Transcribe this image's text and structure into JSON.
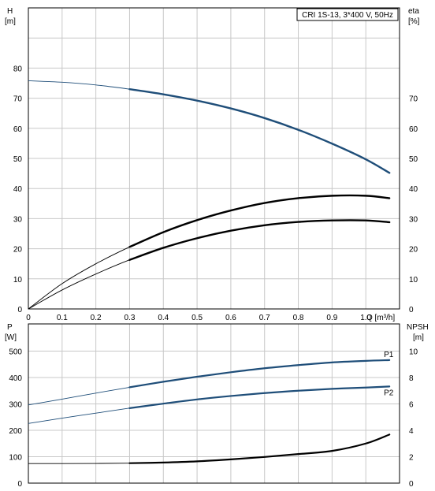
{
  "chart_data": [
    {
      "type": "line",
      "title": "CRI 1S-13, 3*400 V, 50Hz",
      "xlabel": "Q [m³/h]",
      "ylabel_left": [
        "H",
        "[m]"
      ],
      "ylabel_right": [
        "eta",
        "[%]"
      ],
      "xlim": [
        0,
        1.1
      ],
      "ylim_left": [
        0,
        90
      ],
      "ylim_right": [
        0,
        90
      ],
      "x_ticks": [
        "0",
        "0.1",
        "0.2",
        "0.3",
        "0.4",
        "0.5",
        "0.6",
        "0.7",
        "0.8",
        "0.9",
        "1.0"
      ],
      "y_ticks_left": [
        "0",
        "10",
        "20",
        "30",
        "40",
        "50",
        "60",
        "70",
        "80"
      ],
      "y_ticks_right": [
        "0",
        "10",
        "20",
        "30",
        "40",
        "50",
        "60",
        "70"
      ],
      "grid": true,
      "operating_range": [
        0.3,
        1.0
      ],
      "series": [
        {
          "color": "#1f4e79",
          "axis": "left",
          "x": [
            0,
            0.1,
            0.2,
            0.3,
            0.4,
            0.5,
            0.6,
            0.7,
            0.8,
            0.9,
            1.0,
            1.07
          ],
          "values": [
            75.8,
            75.3,
            74.4,
            73.0,
            71.3,
            69.2,
            66.6,
            63.4,
            59.5,
            54.9,
            49.7,
            45.2
          ]
        },
        {
          "color": "#000000",
          "axis": "right",
          "x": [
            0,
            0.1,
            0.2,
            0.3,
            0.4,
            0.5,
            0.6,
            0.7,
            0.8,
            0.9,
            1.0,
            1.07
          ],
          "values": [
            0,
            8.4,
            15.0,
            20.6,
            25.5,
            29.5,
            32.7,
            35.2,
            36.8,
            37.6,
            37.6,
            36.8
          ]
        },
        {
          "color": "#000000",
          "axis": "left",
          "x": [
            0,
            0.1,
            0.2,
            0.3,
            0.4,
            0.5,
            0.6,
            0.7,
            0.8,
            0.9,
            1.0,
            1.07
          ],
          "values": [
            0,
            6.3,
            11.6,
            16.3,
            20.3,
            23.5,
            26.0,
            27.8,
            28.9,
            29.4,
            29.4,
            28.8
          ]
        }
      ]
    },
    {
      "type": "line",
      "xlim": [
        0,
        1.1
      ],
      "ylabel_left": [
        "P",
        "[W]"
      ],
      "ylabel_right": [
        "NPSH",
        "[m]"
      ],
      "ylim_left": [
        0,
        500
      ],
      "ylim_right": [
        0,
        10
      ],
      "y_ticks_left": [
        "0",
        "100",
        "200",
        "300",
        "400",
        "500"
      ],
      "y_ticks_right": [
        "0",
        "2",
        "4",
        "6",
        "8",
        "10"
      ],
      "grid": true,
      "operating_range": [
        0.3,
        1.0
      ],
      "series": [
        {
          "name": "P1",
          "color": "#1f4e79",
          "axis": "left",
          "x": [
            0,
            0.1,
            0.2,
            0.3,
            0.4,
            0.5,
            0.6,
            0.7,
            0.8,
            0.9,
            1.0,
            1.07
          ],
          "values": [
            296,
            318,
            341,
            363,
            384,
            403,
            420,
            435,
            447,
            457,
            463,
            466
          ]
        },
        {
          "name": "P2",
          "color": "#1f4e79",
          "axis": "left",
          "x": [
            0,
            0.1,
            0.2,
            0.3,
            0.4,
            0.5,
            0.6,
            0.7,
            0.8,
            0.9,
            1.0,
            1.07
          ],
          "values": [
            226,
            246,
            265,
            284,
            301,
            317,
            330,
            341,
            350,
            357,
            362,
            366
          ]
        },
        {
          "color": "#000000",
          "axis": "right",
          "x": [
            0,
            0.1,
            0.2,
            0.3,
            0.4,
            0.5,
            0.6,
            0.7,
            0.8,
            0.9,
            1.0,
            1.07
          ],
          "values": [
            1.48,
            1.48,
            1.49,
            1.51,
            1.56,
            1.65,
            1.8,
            1.98,
            2.2,
            2.44,
            3.0,
            3.68
          ]
        }
      ]
    }
  ]
}
